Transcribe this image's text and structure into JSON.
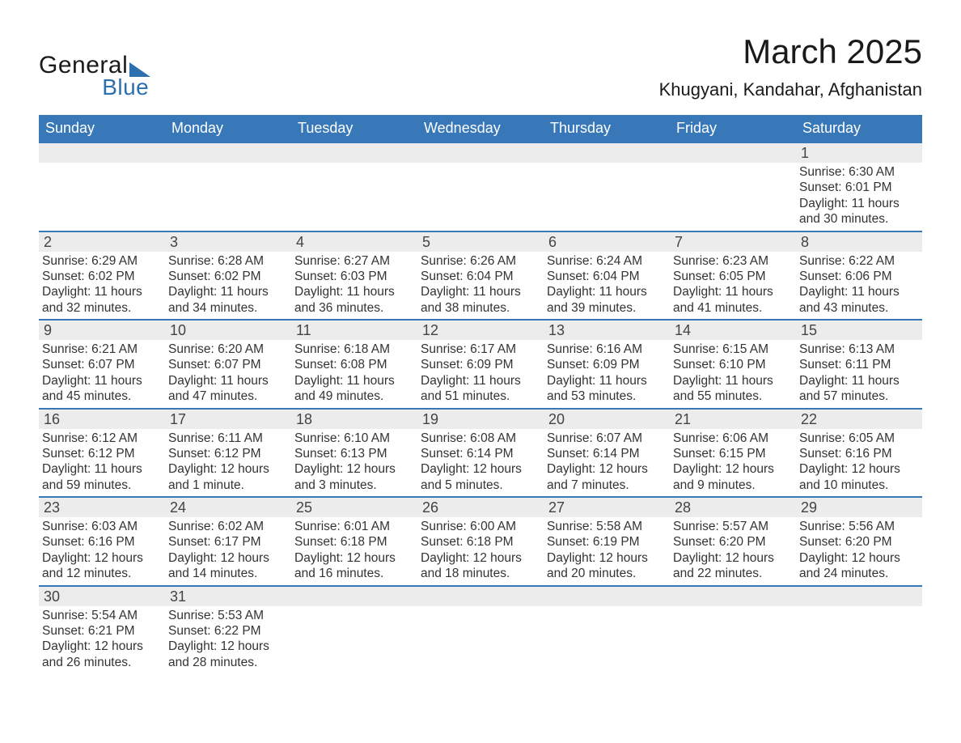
{
  "logo": {
    "line1": "General",
    "line2": "Blue"
  },
  "header": {
    "title": "March 2025",
    "subtitle": "Khugyani, Kandahar, Afghanistan"
  },
  "colors": {
    "header_bg": "#3878b8",
    "header_text": "#ffffff",
    "daynum_bg": "#ececec",
    "week_border": "#3878b8",
    "text": "#333333",
    "logo_accent": "#2e6fb0",
    "background": "#ffffff"
  },
  "typography": {
    "title_fontsize": 42,
    "subtitle_fontsize": 22,
    "dow_fontsize": 18,
    "daynum_fontsize": 18,
    "body_fontsize": 15.5,
    "font_family": "Arial"
  },
  "days_of_week": [
    "Sunday",
    "Monday",
    "Tuesday",
    "Wednesday",
    "Thursday",
    "Friday",
    "Saturday"
  ],
  "labels": {
    "sunrise_prefix": "Sunrise: ",
    "sunset_prefix": "Sunset: ",
    "daylight_prefix": "Daylight: "
  },
  "weeks": [
    [
      {
        "empty": true
      },
      {
        "empty": true
      },
      {
        "empty": true
      },
      {
        "empty": true
      },
      {
        "empty": true
      },
      {
        "empty": true
      },
      {
        "num": "1",
        "sunrise": "6:30 AM",
        "sunset": "6:01 PM",
        "daylight": "11 hours and 30 minutes."
      }
    ],
    [
      {
        "num": "2",
        "sunrise": "6:29 AM",
        "sunset": "6:02 PM",
        "daylight": "11 hours and 32 minutes."
      },
      {
        "num": "3",
        "sunrise": "6:28 AM",
        "sunset": "6:02 PM",
        "daylight": "11 hours and 34 minutes."
      },
      {
        "num": "4",
        "sunrise": "6:27 AM",
        "sunset": "6:03 PM",
        "daylight": "11 hours and 36 minutes."
      },
      {
        "num": "5",
        "sunrise": "6:26 AM",
        "sunset": "6:04 PM",
        "daylight": "11 hours and 38 minutes."
      },
      {
        "num": "6",
        "sunrise": "6:24 AM",
        "sunset": "6:04 PM",
        "daylight": "11 hours and 39 minutes."
      },
      {
        "num": "7",
        "sunrise": "6:23 AM",
        "sunset": "6:05 PM",
        "daylight": "11 hours and 41 minutes."
      },
      {
        "num": "8",
        "sunrise": "6:22 AM",
        "sunset": "6:06 PM",
        "daylight": "11 hours and 43 minutes."
      }
    ],
    [
      {
        "num": "9",
        "sunrise": "6:21 AM",
        "sunset": "6:07 PM",
        "daylight": "11 hours and 45 minutes."
      },
      {
        "num": "10",
        "sunrise": "6:20 AM",
        "sunset": "6:07 PM",
        "daylight": "11 hours and 47 minutes."
      },
      {
        "num": "11",
        "sunrise": "6:18 AM",
        "sunset": "6:08 PM",
        "daylight": "11 hours and 49 minutes."
      },
      {
        "num": "12",
        "sunrise": "6:17 AM",
        "sunset": "6:09 PM",
        "daylight": "11 hours and 51 minutes."
      },
      {
        "num": "13",
        "sunrise": "6:16 AM",
        "sunset": "6:09 PM",
        "daylight": "11 hours and 53 minutes."
      },
      {
        "num": "14",
        "sunrise": "6:15 AM",
        "sunset": "6:10 PM",
        "daylight": "11 hours and 55 minutes."
      },
      {
        "num": "15",
        "sunrise": "6:13 AM",
        "sunset": "6:11 PM",
        "daylight": "11 hours and 57 minutes."
      }
    ],
    [
      {
        "num": "16",
        "sunrise": "6:12 AM",
        "sunset": "6:12 PM",
        "daylight": "11 hours and 59 minutes."
      },
      {
        "num": "17",
        "sunrise": "6:11 AM",
        "sunset": "6:12 PM",
        "daylight": "12 hours and 1 minute."
      },
      {
        "num": "18",
        "sunrise": "6:10 AM",
        "sunset": "6:13 PM",
        "daylight": "12 hours and 3 minutes."
      },
      {
        "num": "19",
        "sunrise": "6:08 AM",
        "sunset": "6:14 PM",
        "daylight": "12 hours and 5 minutes."
      },
      {
        "num": "20",
        "sunrise": "6:07 AM",
        "sunset": "6:14 PM",
        "daylight": "12 hours and 7 minutes."
      },
      {
        "num": "21",
        "sunrise": "6:06 AM",
        "sunset": "6:15 PM",
        "daylight": "12 hours and 9 minutes."
      },
      {
        "num": "22",
        "sunrise": "6:05 AM",
        "sunset": "6:16 PM",
        "daylight": "12 hours and 10 minutes."
      }
    ],
    [
      {
        "num": "23",
        "sunrise": "6:03 AM",
        "sunset": "6:16 PM",
        "daylight": "12 hours and 12 minutes."
      },
      {
        "num": "24",
        "sunrise": "6:02 AM",
        "sunset": "6:17 PM",
        "daylight": "12 hours and 14 minutes."
      },
      {
        "num": "25",
        "sunrise": "6:01 AM",
        "sunset": "6:18 PM",
        "daylight": "12 hours and 16 minutes."
      },
      {
        "num": "26",
        "sunrise": "6:00 AM",
        "sunset": "6:18 PM",
        "daylight": "12 hours and 18 minutes."
      },
      {
        "num": "27",
        "sunrise": "5:58 AM",
        "sunset": "6:19 PM",
        "daylight": "12 hours and 20 minutes."
      },
      {
        "num": "28",
        "sunrise": "5:57 AM",
        "sunset": "6:20 PM",
        "daylight": "12 hours and 22 minutes."
      },
      {
        "num": "29",
        "sunrise": "5:56 AM",
        "sunset": "6:20 PM",
        "daylight": "12 hours and 24 minutes."
      }
    ],
    [
      {
        "num": "30",
        "sunrise": "5:54 AM",
        "sunset": "6:21 PM",
        "daylight": "12 hours and 26 minutes."
      },
      {
        "num": "31",
        "sunrise": "5:53 AM",
        "sunset": "6:22 PM",
        "daylight": "12 hours and 28 minutes."
      },
      {
        "empty": true
      },
      {
        "empty": true
      },
      {
        "empty": true
      },
      {
        "empty": true
      },
      {
        "empty": true
      }
    ]
  ]
}
